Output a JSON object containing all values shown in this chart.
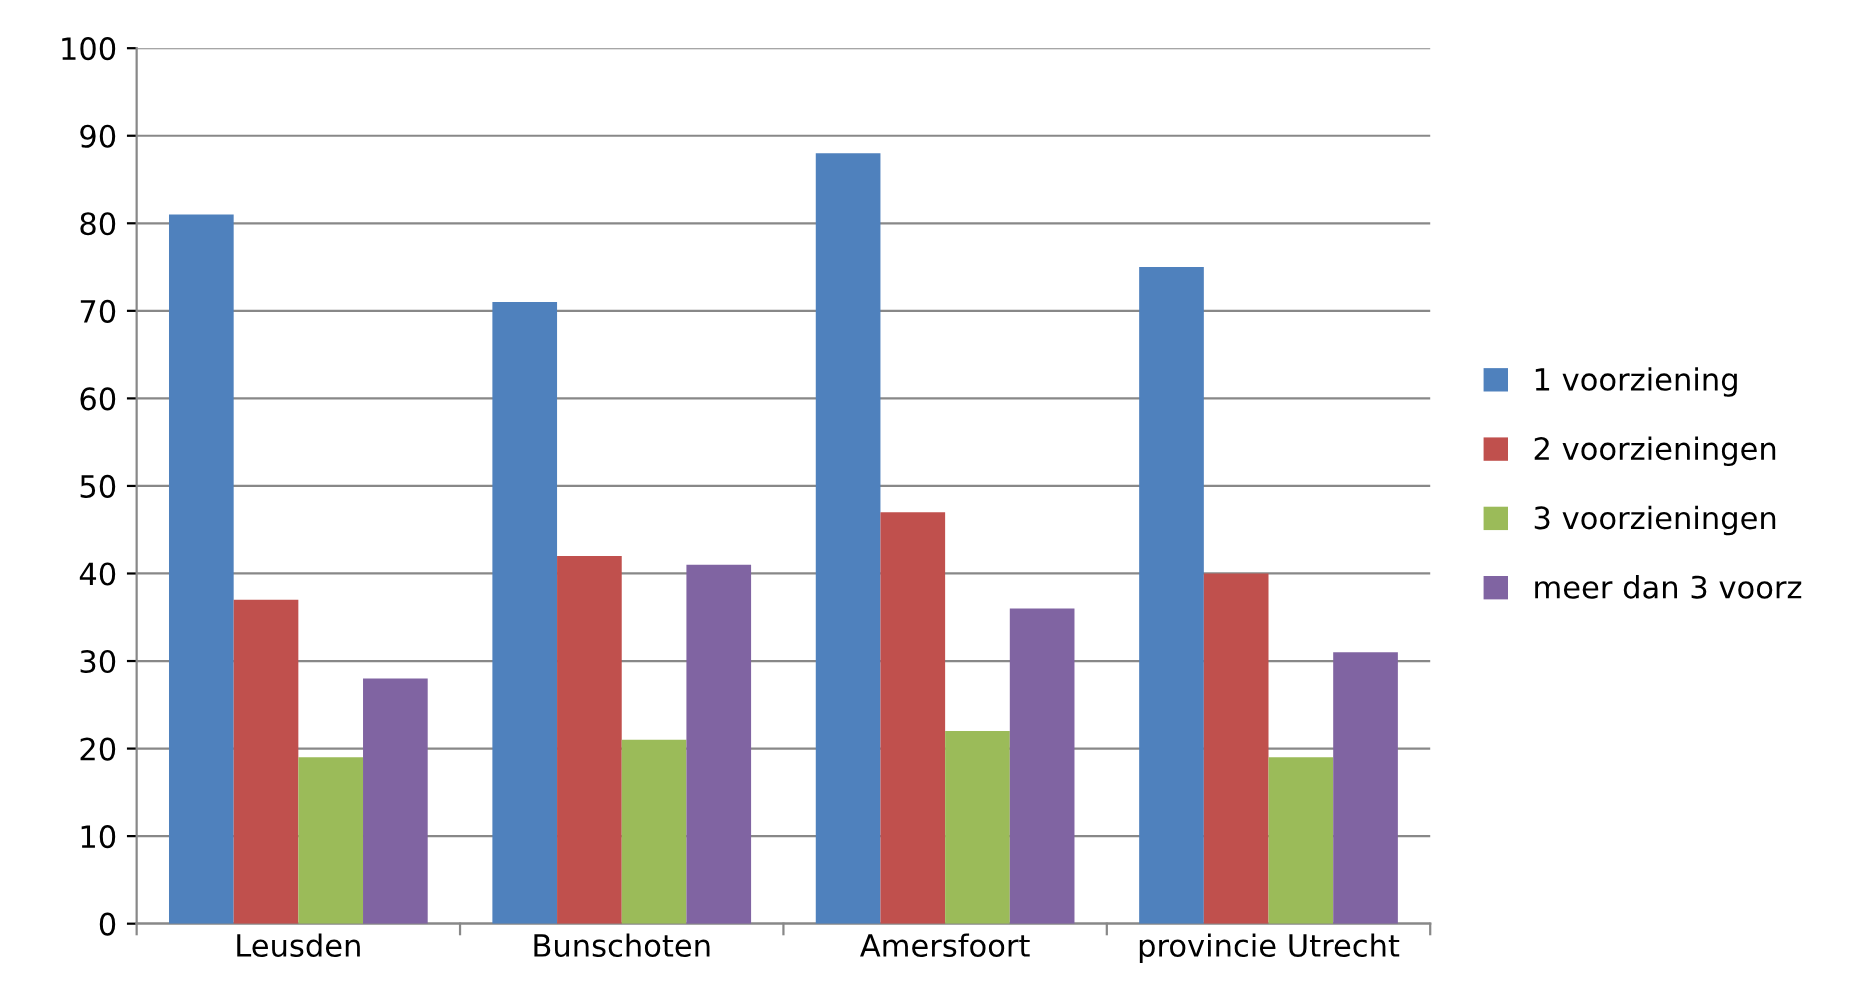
{
  "chart_data": {
    "type": "bar",
    "categories": [
      "Leusden",
      "Bunschoten",
      "Amersfoort",
      "provincie Utrecht"
    ],
    "series": [
      {
        "name": "1 voorziening",
        "color": "#4f81bd",
        "values": [
          81,
          71,
          88,
          75
        ]
      },
      {
        "name": "2 voorzieningen",
        "color": "#c0504d",
        "values": [
          37,
          42,
          47,
          40
        ]
      },
      {
        "name": "3 voorzieningen",
        "color": "#9bbb59",
        "values": [
          19,
          21,
          22,
          19
        ]
      },
      {
        "name": "meer dan 3 voorz",
        "color": "#8064a2",
        "values": [
          28,
          41,
          36,
          31
        ]
      }
    ],
    "ylim": [
      0,
      100
    ],
    "yticks": [
      0,
      10,
      20,
      30,
      40,
      50,
      60,
      70,
      80,
      90,
      100
    ],
    "grid": "y",
    "legend": "right"
  }
}
